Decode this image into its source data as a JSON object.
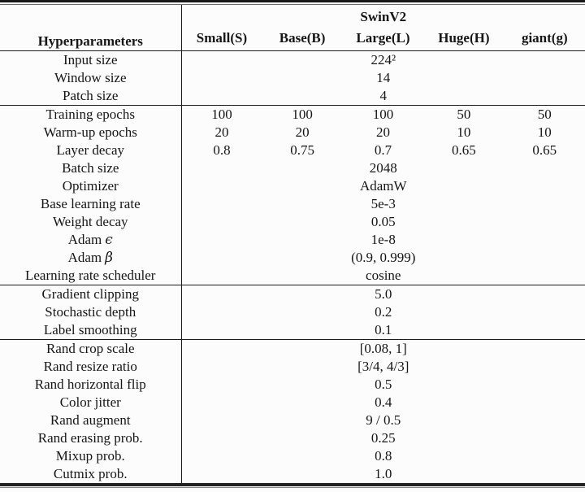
{
  "table": {
    "header": {
      "hyperparameters": "Hyperparameters",
      "group_label": "SwinV2",
      "columns": [
        "Small(S)",
        "Base(B)",
        "Large(L)",
        "Huge(H)",
        "giant(g)"
      ]
    },
    "rows": [
      {
        "label": "Input size",
        "value": "224²"
      },
      {
        "label": "Window size",
        "value": "14"
      },
      {
        "label": "Patch size",
        "value": "4"
      },
      {
        "label": "Training epochs",
        "values": [
          "100",
          "100",
          "100",
          "50",
          "50"
        ]
      },
      {
        "label": "Warm-up epochs",
        "values": [
          "20",
          "20",
          "20",
          "10",
          "10"
        ]
      },
      {
        "label": "Layer decay",
        "values": [
          "0.8",
          "0.75",
          "0.7",
          "0.65",
          "0.65"
        ]
      },
      {
        "label": "Batch size",
        "value": "2048"
      },
      {
        "label": "Optimizer",
        "value": "AdamW"
      },
      {
        "label": "Base learning rate",
        "value": "5e-3"
      },
      {
        "label": "Weight decay",
        "value": "0.05"
      },
      {
        "label": "Adam",
        "math": "ϵ",
        "value": "1e-8"
      },
      {
        "label": "Adam",
        "math": "β",
        "value": "(0.9, 0.999)"
      },
      {
        "label": "Learning rate scheduler",
        "value": "cosine"
      },
      {
        "label": "Gradient clipping",
        "value": "5.0"
      },
      {
        "label": "Stochastic depth",
        "value": "0.2"
      },
      {
        "label": "Label smoothing",
        "value": "0.1"
      },
      {
        "label": "Rand crop scale",
        "value": "[0.08, 1]"
      },
      {
        "label": "Rand resize ratio",
        "value": "[3/4, 4/3]"
      },
      {
        "label": "Rand horizontal flip",
        "value": "0.5"
      },
      {
        "label": "Color jitter",
        "value": "0.4"
      },
      {
        "label": "Rand augment",
        "value": "9 / 0.5"
      },
      {
        "label": "Rand erasing prob.",
        "value": "0.25"
      },
      {
        "label": "Mixup prob.",
        "value": "0.8"
      },
      {
        "label": "Cutmix prob.",
        "value": "1.0"
      }
    ]
  },
  "colors": {
    "rule": "#1c1c1c",
    "text": "#161616",
    "background": "#fcfcfc"
  }
}
